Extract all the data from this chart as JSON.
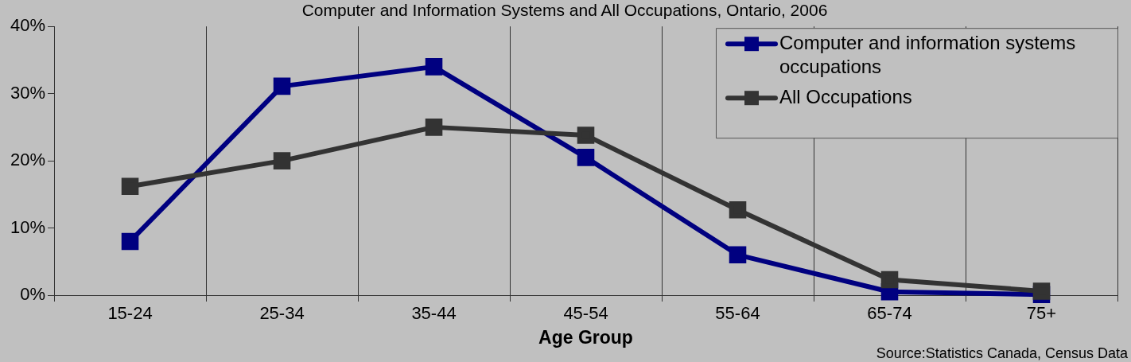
{
  "chart_data": {
    "type": "line",
    "title": "Computer and Information Systems and All Occupations, Ontario, 2006",
    "xlabel": "Age Group",
    "categories": [
      "15-24",
      "25-34",
      "35-44",
      "45-54",
      "55-64",
      "65-74",
      "75+"
    ],
    "series": [
      {
        "name": "Computer and information systems occupations",
        "color": "#000080",
        "values": [
          8.0,
          31.1,
          34.0,
          20.5,
          6.0,
          0.5,
          0.1
        ]
      },
      {
        "name": "All Occupations",
        "color": "#333333",
        "values": [
          16.2,
          20.0,
          25.0,
          23.8,
          12.7,
          2.3,
          0.6
        ]
      }
    ],
    "ylim": [
      0,
      40
    ],
    "yticks": [
      {
        "value": 0,
        "label": "0%"
      },
      {
        "value": 10,
        "label": "10%"
      },
      {
        "value": 20,
        "label": "20%"
      },
      {
        "value": 30,
        "label": "30%"
      },
      {
        "value": 40,
        "label": "40%"
      }
    ],
    "grid": "x",
    "legend": "top right",
    "marker": "square",
    "line_style": "solid",
    "annotations": [
      "Source:Statistics Canada, Census Data"
    ]
  }
}
